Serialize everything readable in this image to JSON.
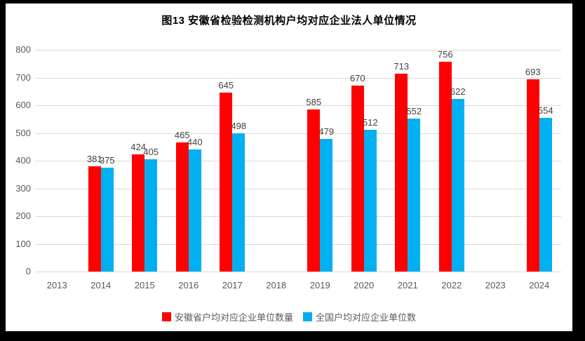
{
  "chart_data": {
    "type": "bar",
    "title": "图13 安徽省检验检测机构户均对应企业法人单位情况",
    "categories": [
      "2013",
      "2014",
      "2015",
      "2016",
      "2017",
      "2018",
      "2019",
      "2020",
      "2021",
      "2022",
      "2023",
      "2024"
    ],
    "series": [
      {
        "name": "安徽省户均对应企业单位数量",
        "color": "#FF0000",
        "values": [
          null,
          381,
          424,
          465,
          645,
          null,
          585,
          670,
          713,
          756,
          null,
          693
        ]
      },
      {
        "name": "全国户均对应企业单位数",
        "color": "#00B0F0",
        "values": [
          null,
          375,
          405,
          440,
          498,
          null,
          479,
          512,
          552,
          622,
          null,
          554
        ]
      }
    ],
    "ylim": [
      0,
      800
    ],
    "yticks": [
      0,
      100,
      200,
      300,
      400,
      500,
      600,
      700,
      800
    ],
    "grid": true,
    "legend_position": "bottom",
    "colors": {
      "grid": "#D9D9D9",
      "axis_text": "#595959",
      "data_label": "#404040",
      "title": "#000000",
      "background": "#FFFFFF",
      "frame": "#000000"
    }
  }
}
